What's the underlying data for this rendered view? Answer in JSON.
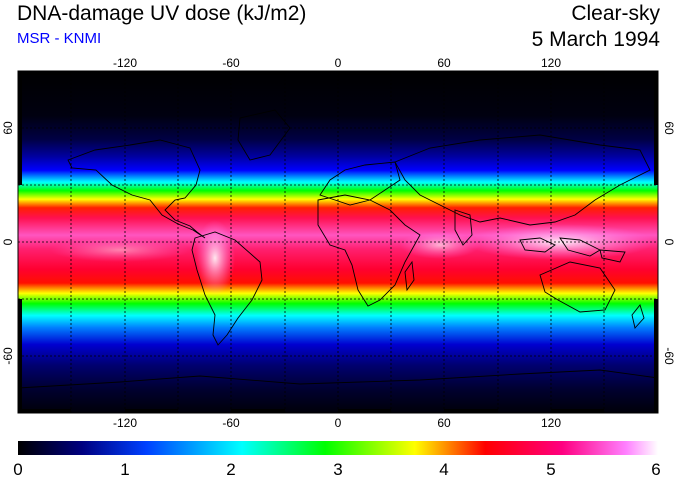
{
  "header": {
    "title": "DNA-damage UV dose (kJ/m2)",
    "subtitle": "MSR - KNMI",
    "condition": "Clear-sky",
    "date": "5 March 1994"
  },
  "map": {
    "longitude_ticks": [
      "-120",
      "-60",
      "0",
      "60",
      "120"
    ],
    "latitude_ticks": [
      "60",
      "0",
      "-60"
    ]
  },
  "colorbar": {
    "labels": [
      "0",
      "1",
      "2",
      "3",
      "4",
      "5",
      "6"
    ],
    "stops": [
      "#000000",
      "#00008b",
      "#0000ff",
      "#00ffff",
      "#00ff00",
      "#ffff00",
      "#ff0000",
      "#ff0080",
      "#ff55ff",
      "#ffffff"
    ]
  }
}
